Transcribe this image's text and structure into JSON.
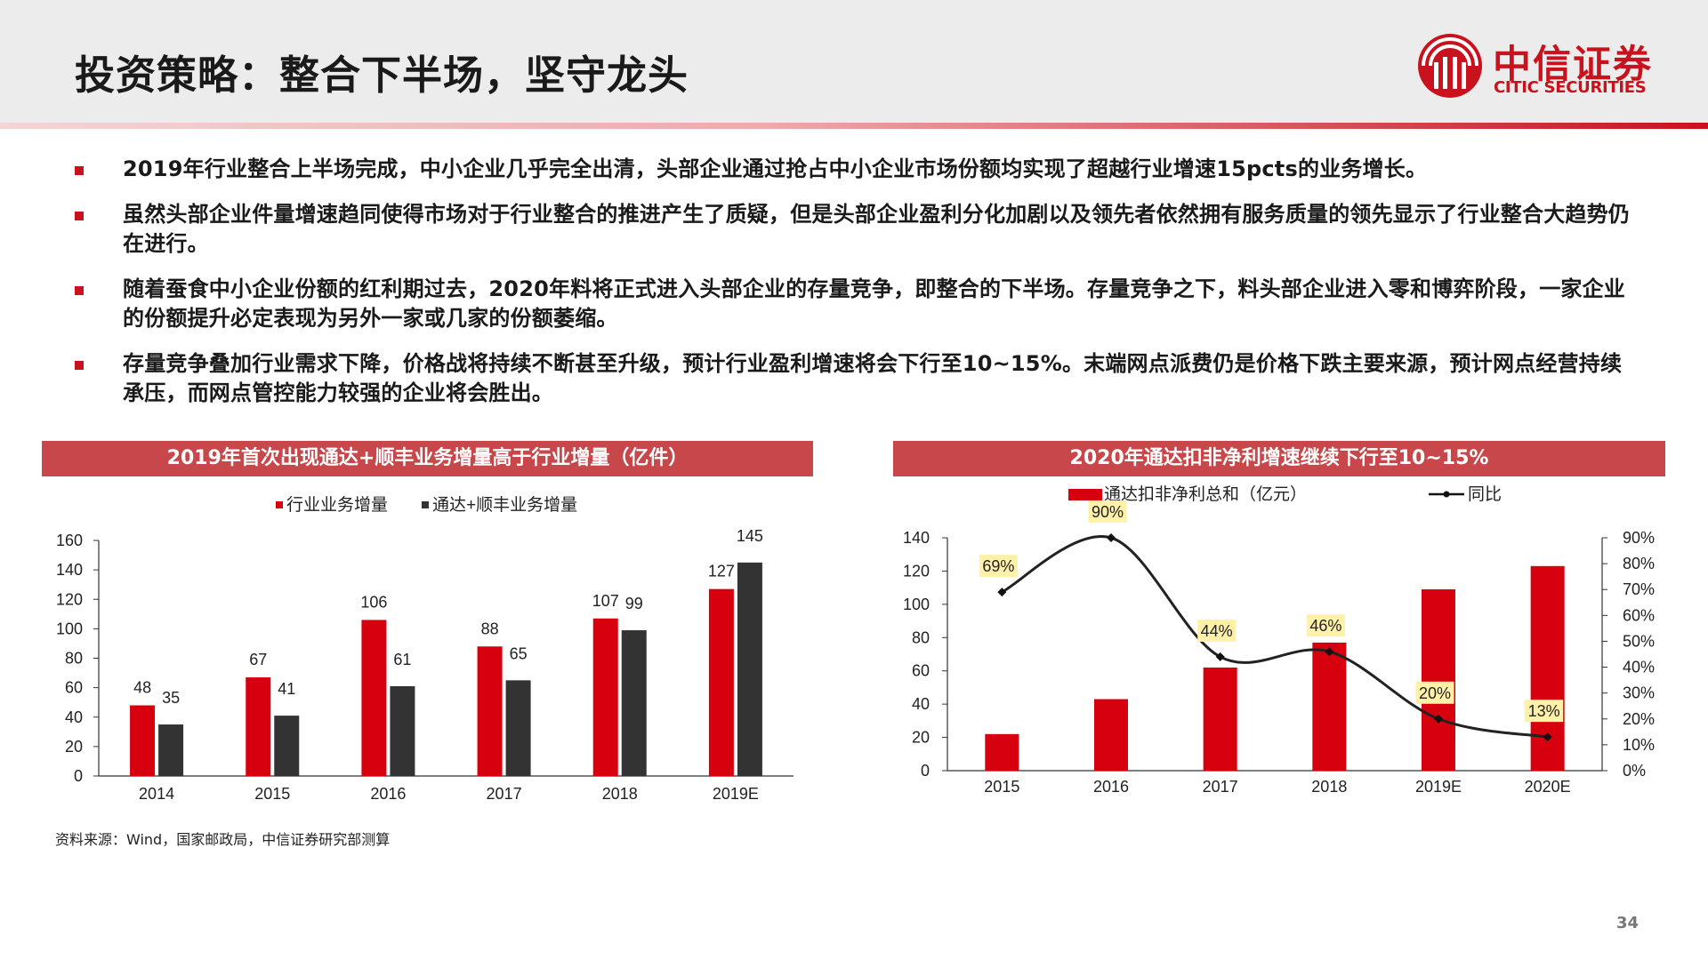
{
  "title": "投资策略：整合下半场，坚守龙头",
  "logo": {
    "cn": "中信证券",
    "en": "CITIC SECURITIES"
  },
  "bullets": [
    "2019年行业整合上半场完成，中小企业几乎完全出清，头部企业通过抢占中小企业市场份额均实现了超越行业增速15pcts的业务增长。",
    "虽然头部企业件量增速趋同使得市场对于行业整合的推进产生了质疑，但是头部企业盈利分化加剧以及领先者依然拥有服务质量的领先显示了行业整合大趋势仍在进行。",
    "随着蚕食中小企业份额的红利期过去，2020年料将正式进入头部企业的存量竞争，即整合的下半场。存量竞争之下，料头部企业进入零和博弈阶段，一家企业的份额提升必定表现为另外一家或几家的份额萎缩。",
    "存量竞争叠加行业需求下降，价格战将持续不断甚至升级，预计行业盈利增速将会下行至10~15%。末端网点派费仍是价格下跌主要来源，预计网点经营持续承压，而网点管控能力较强的企业将会胜出。"
  ],
  "source": "资料来源：Wind，国家邮政局，中信证券研究部测算",
  "page_number": "34",
  "colors": {
    "red": "#d7000f",
    "dark": "#333333",
    "title_bg": "#c8474a",
    "label_bg": "#fff1a8"
  },
  "chart_data": [
    {
      "type": "bar",
      "title": "2019年首次出现通达+顺丰业务增量高于行业增量（亿件）",
      "categories": [
        "2014",
        "2015",
        "2016",
        "2017",
        "2018",
        "2019E"
      ],
      "series": [
        {
          "name": "行业业务增量",
          "values": [
            48,
            67,
            106,
            88,
            107,
            127
          ]
        },
        {
          "name": "通达+顺丰业务增量",
          "values": [
            35,
            41,
            61,
            65,
            99,
            145
          ]
        }
      ],
      "ylim": [
        0,
        160
      ],
      "yticks": [
        "0",
        "20",
        "40",
        "60",
        "80",
        "100",
        "120",
        "140",
        "160"
      ],
      "legend": "top-center",
      "grid": false
    },
    {
      "type": "bar+line",
      "title": "2020年通达扣非净利增速继续下行至10~15%",
      "categories": [
        "2015",
        "2016",
        "2017",
        "2018",
        "2019E",
        "2020E"
      ],
      "bar_series": {
        "name": "通达扣非净利总和（亿元）",
        "values": [
          22,
          43,
          62,
          77,
          109,
          123
        ]
      },
      "line_series": {
        "name": "同比",
        "values": [
          0.69,
          0.9,
          0.44,
          0.46,
          0.2,
          0.13
        ],
        "labels": [
          "69%",
          "90%",
          "44%",
          "46%",
          "20%",
          "13%"
        ]
      },
      "ylim_left": [
        0,
        140
      ],
      "yticks_left": [
        "0",
        "20",
        "40",
        "60",
        "80",
        "100",
        "120",
        "140"
      ],
      "ylim_right": [
        0,
        0.9
      ],
      "yticks_right": [
        "0%",
        "10%",
        "20%",
        "30%",
        "40%",
        "50%",
        "60%",
        "70%",
        "80%",
        "90%"
      ],
      "legend": "top-center",
      "grid": false
    }
  ]
}
